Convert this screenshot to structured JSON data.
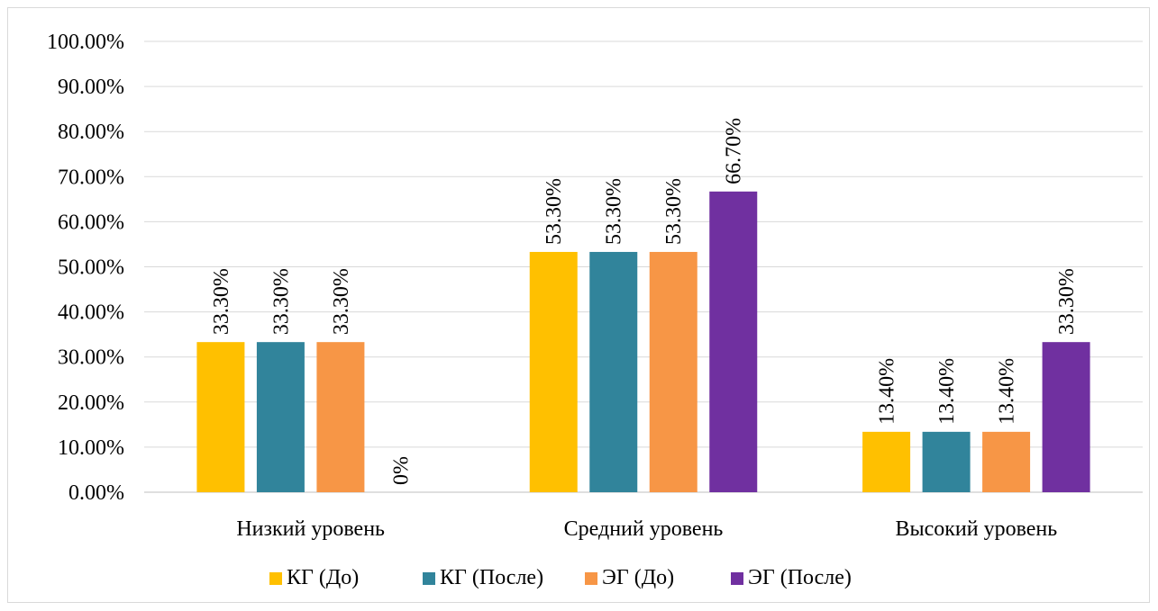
{
  "chart_data": {
    "type": "bar",
    "categories": [
      "Низкий уровень",
      "Средний уровень",
      "Высокий уровень"
    ],
    "series": [
      {
        "name": "КГ (До)",
        "color": "#FFC000",
        "values": [
          33.3,
          53.3,
          13.4
        ],
        "labels": [
          "33.30%",
          "53.30%",
          "13.40%"
        ]
      },
      {
        "name": "КГ (После)",
        "color": "#31849B",
        "values": [
          33.3,
          53.3,
          13.4
        ],
        "labels": [
          "33.30%",
          "53.30%",
          "13.40%"
        ]
      },
      {
        "name": "ЭГ (До)",
        "color": "#F79646",
        "values": [
          33.3,
          53.3,
          13.4
        ],
        "labels": [
          "33.30%",
          "53.30%",
          "13.40%"
        ]
      },
      {
        "name": "ЭГ (После)",
        "color": "#7030A0",
        "values": [
          0,
          66.7,
          33.3
        ],
        "labels": [
          "0%",
          "66.70%",
          "33.30%"
        ]
      }
    ],
    "ylim": [
      0,
      100
    ],
    "yticks": [
      "0.00%",
      "10.00%",
      "20.00%",
      "30.00%",
      "40.00%",
      "50.00%",
      "60.00%",
      "70.00%",
      "80.00%",
      "90.00%",
      "100.00%"
    ],
    "grid": true,
    "legend_position": "bottom"
  }
}
